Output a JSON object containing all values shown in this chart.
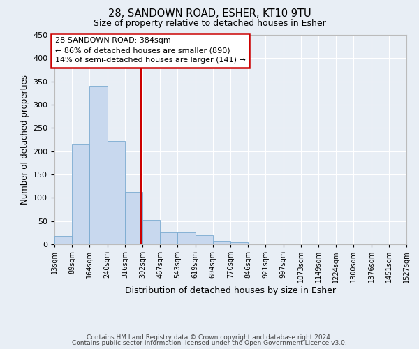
{
  "title": "28, SANDOWN ROAD, ESHER, KT10 9TU",
  "subtitle": "Size of property relative to detached houses in Esher",
  "xlabel": "Distribution of detached houses by size in Esher",
  "ylabel": "Number of detached properties",
  "bar_values": [
    18,
    215,
    340,
    222,
    113,
    53,
    26,
    25,
    20,
    8,
    4,
    2,
    0,
    0,
    2,
    0,
    0,
    0,
    0,
    0
  ],
  "bin_edges": [
    13,
    89,
    164,
    240,
    316,
    392,
    467,
    543,
    619,
    694,
    770,
    846,
    921,
    997,
    1073,
    1149,
    1224,
    1300,
    1376,
    1451,
    1527
  ],
  "tick_labels": [
    "13sqm",
    "89sqm",
    "164sqm",
    "240sqm",
    "316sqm",
    "392sqm",
    "467sqm",
    "543sqm",
    "619sqm",
    "694sqm",
    "770sqm",
    "846sqm",
    "921sqm",
    "997sqm",
    "1073sqm",
    "1149sqm",
    "1224sqm",
    "1300sqm",
    "1376sqm",
    "1451sqm",
    "1527sqm"
  ],
  "bar_color": "#c8d8ee",
  "bar_edge_color": "#7aaad0",
  "property_line_x": 384,
  "property_line_color": "#cc0000",
  "annotation_text": "28 SANDOWN ROAD: 384sqm\n← 86% of detached houses are smaller (890)\n14% of semi-detached houses are larger (141) →",
  "annotation_box_color": "white",
  "annotation_box_edge_color": "#cc0000",
  "ylim": [
    0,
    450
  ],
  "yticks": [
    0,
    50,
    100,
    150,
    200,
    250,
    300,
    350,
    400,
    450
  ],
  "bg_color": "#e8eef5",
  "grid_color": "white",
  "footer_line1": "Contains HM Land Registry data © Crown copyright and database right 2024.",
  "footer_line2": "Contains public sector information licensed under the Open Government Licence v3.0."
}
